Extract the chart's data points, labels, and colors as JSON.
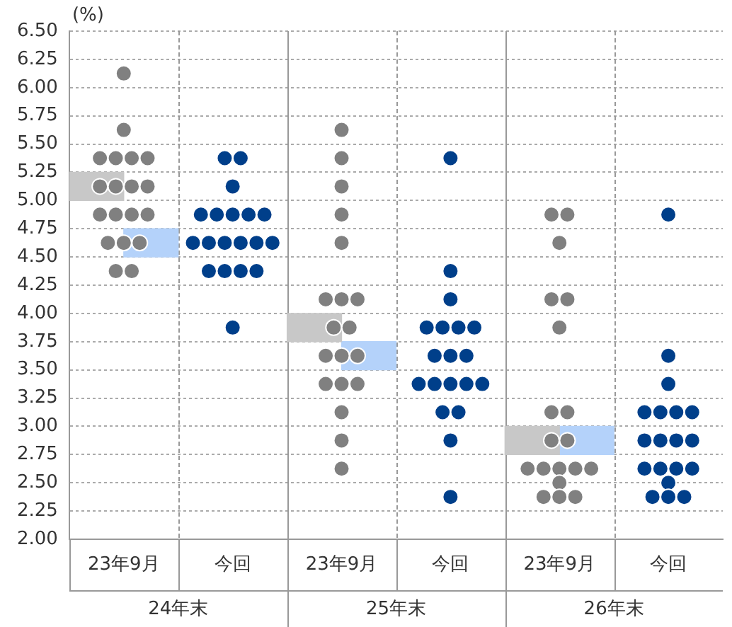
{
  "chart_data": {
    "type": "scatter",
    "ylabel": "(%)",
    "categories": [
      "24年末",
      "25年末",
      "26年末"
    ],
    "ylim": [
      2,
      6.5
    ],
    "yticks": [
      {
        "value": 2,
        "label": "2.00"
      },
      {
        "value": 2.25,
        "label": "2.25"
      },
      {
        "value": 2.5,
        "label": "2.50"
      },
      {
        "value": 2.75,
        "label": "2.75"
      },
      {
        "value": 3,
        "label": "3.00"
      },
      {
        "value": 3.25,
        "label": "3.25"
      },
      {
        "value": 3.5,
        "label": "3.50"
      },
      {
        "value": 3.75,
        "label": "3.75"
      },
      {
        "value": 4,
        "label": "4.00"
      },
      {
        "value": 4.25,
        "label": "4.25"
      },
      {
        "value": 4.5,
        "label": "4.50"
      },
      {
        "value": 4.75,
        "label": "4.75"
      },
      {
        "value": 5,
        "label": "5.00"
      },
      {
        "value": 5.25,
        "label": "5.25"
      },
      {
        "value": 5.5,
        "label": "5.50"
      },
      {
        "value": 5.75,
        "label": "5.75"
      },
      {
        "value": 6,
        "label": "6.00"
      },
      {
        "value": 6.25,
        "label": "6.25"
      },
      {
        "value": 6.5,
        "label": "6.50"
      }
    ],
    "grid": true,
    "marker": "circle",
    "series": [
      {
        "type": "bar",
        "base": [
          5,
          3.75,
          2.75
        ],
        "values": [
          0.25,
          0.25,
          0.25
        ],
        "color": "#c8c8c8"
      },
      {
        "type": "bar",
        "base": [
          4.5,
          3.5,
          2.75
        ],
        "values": [
          0.25,
          0.25,
          0.25
        ],
        "color": "#b4d2fa"
      },
      {
        "name": "23年9月",
        "color": "#808080",
        "x": [
          "24年末",
          "24年末",
          "24年末",
          "24年末",
          "24年末",
          "24年末",
          "24年末",
          "24年末",
          "24年末",
          "24年末",
          "24年末",
          "24年末",
          "24年末",
          "24年末",
          "24年末",
          "24年末",
          "24年末",
          "24年末",
          "24年末",
          "25年末",
          "25年末",
          "25年末",
          "25年末",
          "25年末",
          "25年末",
          "25年末",
          "25年末",
          "25年末",
          "25年末",
          "25年末",
          "25年末",
          "25年末",
          "25年末",
          "25年末",
          "25年末",
          "25年末",
          "25年末",
          "25年末",
          "26年末",
          "26年末",
          "26年末",
          "26年末",
          "26年末",
          "26年末",
          "26年末",
          "26年末",
          "26年末",
          "26年末",
          "26年末",
          "26年末",
          "26年末",
          "26年末",
          "26年末",
          "26年末",
          "26年末",
          "26年末",
          "26年末"
        ],
        "values": [
          6.125,
          5.625,
          5.375,
          5.375,
          5.375,
          5.375,
          5.125,
          5.125,
          5.125,
          5.125,
          4.875,
          4.875,
          4.875,
          4.875,
          4.625,
          4.625,
          4.625,
          4.375,
          4.375,
          5.625,
          5.375,
          5.125,
          4.875,
          4.625,
          4.125,
          4.125,
          4.125,
          3.875,
          3.875,
          3.625,
          3.625,
          3.625,
          3.375,
          3.375,
          3.375,
          3.125,
          2.875,
          2.625,
          4.875,
          4.875,
          4.625,
          4.125,
          4.125,
          3.875,
          3.125,
          3.125,
          2.875,
          2.875,
          2.625,
          2.625,
          2.625,
          2.625,
          2.625,
          2.5,
          2.375,
          2.375,
          2.375
        ]
      },
      {
        "name": "今回",
        "color": "#003f8a",
        "x": [
          "24年末",
          "24年末",
          "24年末",
          "24年末",
          "24年末",
          "24年末",
          "24年末",
          "24年末",
          "24年末",
          "24年末",
          "24年末",
          "24年末",
          "24年末",
          "24年末",
          "24年末",
          "24年末",
          "24年末",
          "24年末",
          "24年末",
          "25年末",
          "25年末",
          "25年末",
          "25年末",
          "25年末",
          "25年末",
          "25年末",
          "25年末",
          "25年末",
          "25年末",
          "25年末",
          "25年末",
          "25年末",
          "25年末",
          "25年末",
          "25年末",
          "25年末",
          "25年末",
          "25年末",
          "26年末",
          "26年末",
          "26年末",
          "26年末",
          "26年末",
          "26年末",
          "26年末",
          "26年末",
          "26年末",
          "26年末",
          "26年末",
          "26年末",
          "26年末",
          "26年末",
          "26年末",
          "26年末",
          "26年末",
          "26年末",
          "26年末"
        ],
        "values": [
          5.375,
          5.375,
          5.125,
          4.875,
          4.875,
          4.875,
          4.875,
          4.875,
          4.625,
          4.625,
          4.625,
          4.625,
          4.625,
          4.625,
          4.375,
          4.375,
          4.375,
          4.375,
          3.875,
          5.375,
          4.375,
          4.125,
          3.875,
          3.875,
          3.875,
          3.875,
          3.625,
          3.625,
          3.625,
          3.375,
          3.375,
          3.375,
          3.375,
          3.375,
          3.125,
          3.125,
          2.875,
          2.375,
          4.875,
          3.625,
          3.375,
          3.125,
          3.125,
          3.125,
          3.125,
          2.875,
          2.875,
          2.875,
          2.875,
          2.625,
          2.625,
          2.625,
          2.625,
          2.5,
          2.375,
          2.375,
          2.375
        ]
      }
    ]
  }
}
